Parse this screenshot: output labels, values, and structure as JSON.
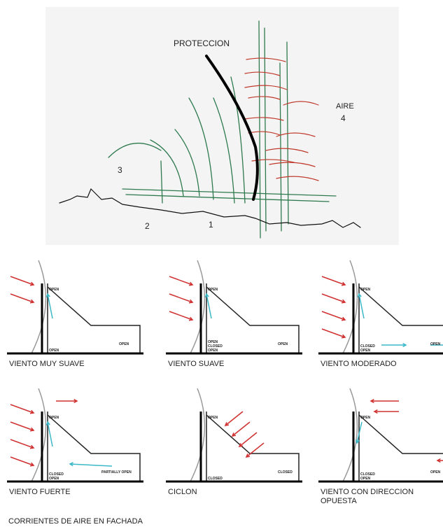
{
  "sketch": {
    "title": "PROTECCION",
    "air_label": "AIRE",
    "numbers": [
      "4",
      "3",
      "2",
      "1"
    ]
  },
  "panels": [
    {
      "caption": [
        "VIENTO MUY SUAVE"
      ],
      "top": "OPEN",
      "bottom": [
        "OPEN"
      ],
      "right": "OPEN"
    },
    {
      "caption": [
        "VIENTO  SUAVE"
      ],
      "top": "OPEN",
      "bottom": [
        "OPEN",
        "CLOSED",
        "OPEN"
      ],
      "right": "OPEN"
    },
    {
      "caption": [
        "VIENTO  MODERADO"
      ],
      "top": "OPEN",
      "bottom": [
        "CLOSED",
        "OPEN"
      ],
      "right": "OPEN"
    },
    {
      "caption": [
        "VIENTO  FUERTE"
      ],
      "top": "OPEN",
      "bottom": [
        "CLOSED",
        "OPEN"
      ],
      "right": "PARTIALLY OPEN"
    },
    {
      "caption": [
        "CICLON"
      ],
      "top": "OPEN",
      "bottom": [
        "CLOSED"
      ],
      "right": "CLOSED"
    },
    {
      "caption": [
        "VIENTO CON DIRECCION",
        "OPUESTA"
      ],
      "top": "OPEN",
      "bottom": [
        "CLOSED",
        "OPEN"
      ],
      "right": "OPEN"
    }
  ],
  "caption": "CORRIENTES DE AIRE EN FACHADA"
}
